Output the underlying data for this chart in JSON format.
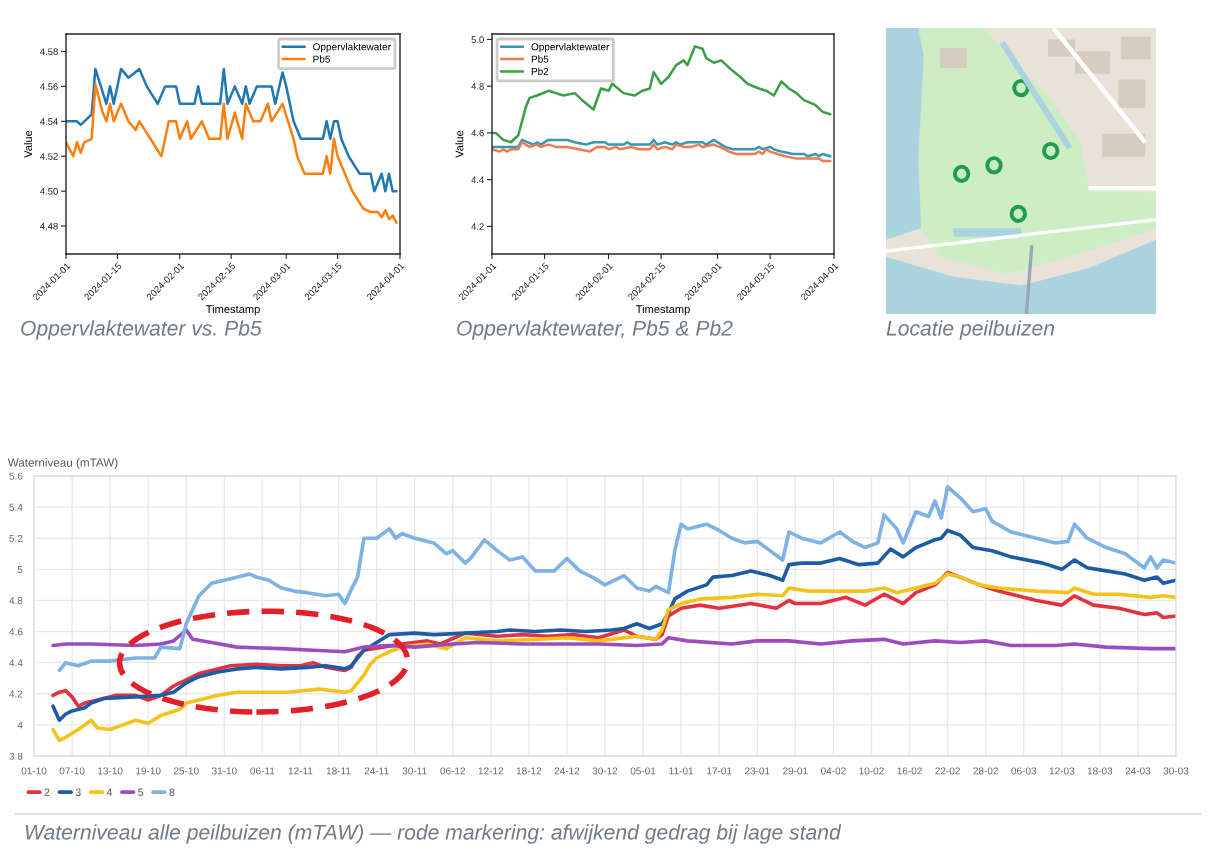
{
  "chart_data": [
    {
      "type": "line",
      "title": "Oppervlaktewater vs. Pb5",
      "xlabel": "Timestamp",
      "ylabel": "Value",
      "legend": "top right",
      "xlim": [
        "2024-01-01",
        "2024-04-01"
      ],
      "xticks": [
        "2024-01-01",
        "2024-01-15",
        "2024-02-01",
        "2024-02-15",
        "2024-03-01",
        "2024-03-15",
        "2024-04-01"
      ],
      "ylim": [
        4.464,
        4.59
      ],
      "yticks": [
        4.48,
        {
          "value": 4.5,
          "label": "4.50"
        },
        4.52,
        4.54,
        4.56,
        4.58
      ],
      "series": [
        {
          "name": "Oppervlaktewater",
          "color": "#1f77b4",
          "x": [
            "2024-01-01",
            "2024-01-04",
            "2024-01-05",
            "2024-01-06",
            "2024-01-08",
            "2024-01-09",
            "2024-01-12",
            "2024-01-13",
            "2024-01-14",
            "2024-01-16",
            "2024-01-18",
            "2024-01-21",
            "2024-01-23",
            "2024-01-26",
            "2024-01-28",
            "2024-01-31",
            "2024-02-01",
            "2024-02-05",
            "2024-02-06",
            "2024-02-07",
            "2024-02-12",
            "2024-02-13",
            "2024-02-14",
            "2024-02-16",
            "2024-02-18",
            "2024-02-19",
            "2024-02-20",
            "2024-02-22",
            "2024-02-26",
            "2024-02-27",
            "2024-02-29",
            "2024-03-01",
            "2024-03-03",
            "2024-03-05",
            "2024-03-11",
            "2024-03-12",
            "2024-03-13",
            "2024-03-14",
            "2024-03-15",
            "2024-03-16",
            "2024-03-18",
            "2024-03-21",
            "2024-03-24",
            "2024-03-25",
            "2024-03-27",
            "2024-03-28",
            "2024-03-29",
            "2024-03-30",
            "2024-03-31"
          ],
          "values": [
            4.54,
            4.54,
            4.538,
            4.54,
            4.544,
            4.57,
            4.55,
            4.56,
            4.55,
            4.57,
            4.565,
            4.57,
            4.56,
            4.55,
            4.56,
            4.56,
            4.55,
            4.55,
            4.56,
            4.55,
            4.55,
            4.57,
            4.55,
            4.56,
            4.55,
            4.56,
            4.55,
            4.56,
            4.56,
            4.55,
            4.568,
            4.56,
            4.54,
            4.53,
            4.53,
            4.54,
            4.53,
            4.54,
            4.54,
            4.53,
            4.52,
            4.51,
            4.51,
            4.5,
            4.51,
            4.5,
            4.51,
            4.5,
            4.5
          ]
        },
        {
          "name": "Pb5",
          "color": "#ff7f0e",
          "x": [
            "2024-01-01",
            "2024-01-03",
            "2024-01-04",
            "2024-01-05",
            "2024-01-06",
            "2024-01-08",
            "2024-01-09",
            "2024-01-11",
            "2024-01-12",
            "2024-01-13",
            "2024-01-14",
            "2024-01-16",
            "2024-01-18",
            "2024-01-20",
            "2024-01-21",
            "2024-01-24",
            "2024-01-27",
            "2024-01-28",
            "2024-01-29",
            "2024-01-31",
            "2024-02-01",
            "2024-02-03",
            "2024-02-04",
            "2024-02-07",
            "2024-02-09",
            "2024-02-12",
            "2024-02-13",
            "2024-02-14",
            "2024-02-16",
            "2024-02-18",
            "2024-02-19",
            "2024-02-21",
            "2024-02-23",
            "2024-02-25",
            "2024-02-26",
            "2024-02-29",
            "2024-03-03",
            "2024-03-04",
            "2024-03-06",
            "2024-03-11",
            "2024-03-12",
            "2024-03-13",
            "2024-03-14",
            "2024-03-15",
            "2024-03-17",
            "2024-03-19",
            "2024-03-22",
            "2024-03-24",
            "2024-03-26",
            "2024-03-27",
            "2024-03-28",
            "2024-03-29",
            "2024-03-30",
            "2024-03-31"
          ],
          "values": [
            4.528,
            4.52,
            4.528,
            4.522,
            4.528,
            4.53,
            4.561,
            4.545,
            4.54,
            4.55,
            4.54,
            4.55,
            4.54,
            4.535,
            4.54,
            4.53,
            4.52,
            4.53,
            4.54,
            4.54,
            4.53,
            4.54,
            4.53,
            4.54,
            4.53,
            4.53,
            4.55,
            4.53,
            4.545,
            4.53,
            4.55,
            4.54,
            4.54,
            4.55,
            4.54,
            4.55,
            4.53,
            4.52,
            4.51,
            4.51,
            4.52,
            4.51,
            4.53,
            4.52,
            4.51,
            4.5,
            4.49,
            4.488,
            4.488,
            4.485,
            4.489,
            4.484,
            4.486,
            4.482
          ]
        }
      ]
    },
    {
      "type": "line",
      "title": "Oppervlaktewater, Pb5 & Pb2",
      "xlabel": "Timestamp",
      "ylabel": "Value",
      "legend": "top left",
      "xlim": [
        "2024-01-01",
        "2024-04-01"
      ],
      "xticks": [
        "2024-01-01",
        "2024-01-15",
        "2024-02-01",
        "2024-02-15",
        "2024-03-01",
        "2024-03-15",
        "2024-04-01"
      ],
      "ylim": [
        4.082,
        5.023
      ],
      "yticks": [
        4.2,
        4.4,
        4.6,
        4.8,
        {
          "value": 5,
          "label": "5.0"
        }
      ],
      "series": [
        {
          "name": "Oppervlaktewater",
          "color": "#3597b4",
          "x": [
            "2024-01-01",
            "2024-01-04",
            "2024-01-06",
            "2024-01-08",
            "2024-01-09",
            "2024-01-12",
            "2024-01-13",
            "2024-01-14",
            "2024-01-16",
            "2024-01-21",
            "2024-01-23",
            "2024-01-26",
            "2024-01-28",
            "2024-01-31",
            "2024-02-01",
            "2024-02-05",
            "2024-02-06",
            "2024-02-07",
            "2024-02-12",
            "2024-02-13",
            "2024-02-14",
            "2024-02-16",
            "2024-02-18",
            "2024-02-19",
            "2024-02-20",
            "2024-02-22",
            "2024-02-26",
            "2024-02-27",
            "2024-02-29",
            "2024-03-03",
            "2024-03-05",
            "2024-03-11",
            "2024-03-12",
            "2024-03-13",
            "2024-03-15",
            "2024-03-16",
            "2024-03-18",
            "2024-03-21",
            "2024-03-24",
            "2024-03-25",
            "2024-03-27",
            "2024-03-28",
            "2024-03-29",
            "2024-03-31"
          ],
          "values": [
            4.54,
            4.54,
            4.54,
            4.54,
            4.57,
            4.55,
            4.56,
            4.55,
            4.57,
            4.57,
            4.56,
            4.55,
            4.56,
            4.56,
            4.55,
            4.55,
            4.56,
            4.55,
            4.55,
            4.57,
            4.55,
            4.56,
            4.55,
            4.56,
            4.55,
            4.56,
            4.56,
            4.55,
            4.57,
            4.54,
            4.53,
            4.53,
            4.54,
            4.53,
            4.54,
            4.53,
            4.52,
            4.51,
            4.51,
            4.5,
            4.51,
            4.5,
            4.51,
            4.5
          ]
        },
        {
          "name": "Pb5",
          "color": "#f17a52",
          "x": [
            "2024-01-01",
            "2024-01-03",
            "2024-01-04",
            "2024-01-05",
            "2024-01-06",
            "2024-01-08",
            "2024-01-09",
            "2024-01-11",
            "2024-01-13",
            "2024-01-14",
            "2024-01-16",
            "2024-01-18",
            "2024-01-21",
            "2024-01-24",
            "2024-01-27",
            "2024-01-28",
            "2024-01-29",
            "2024-01-31",
            "2024-02-01",
            "2024-02-03",
            "2024-02-04",
            "2024-02-07",
            "2024-02-09",
            "2024-02-12",
            "2024-02-13",
            "2024-02-14",
            "2024-02-16",
            "2024-02-18",
            "2024-02-19",
            "2024-02-21",
            "2024-02-23",
            "2024-02-25",
            "2024-02-26",
            "2024-02-29",
            "2024-03-03",
            "2024-03-04",
            "2024-03-06",
            "2024-03-11",
            "2024-03-12",
            "2024-03-13",
            "2024-03-14",
            "2024-03-15",
            "2024-03-17",
            "2024-03-19",
            "2024-03-22",
            "2024-03-28",
            "2024-03-29",
            "2024-03-31"
          ],
          "values": [
            4.53,
            4.52,
            4.53,
            4.52,
            4.53,
            4.53,
            4.56,
            4.54,
            4.55,
            4.54,
            4.55,
            4.54,
            4.54,
            4.53,
            4.52,
            4.53,
            4.54,
            4.54,
            4.53,
            4.54,
            4.53,
            4.54,
            4.53,
            4.53,
            4.55,
            4.53,
            4.54,
            4.53,
            4.55,
            4.54,
            4.54,
            4.55,
            4.54,
            4.55,
            4.53,
            4.52,
            4.51,
            4.51,
            4.52,
            4.51,
            4.53,
            4.52,
            4.51,
            4.5,
            4.49,
            4.49,
            4.48,
            4.48
          ]
        },
        {
          "name": "Pb2",
          "color": "#3a9e45",
          "x": [
            "2024-01-01",
            "2024-01-02",
            "2024-01-04",
            "2024-01-06",
            "2024-01-08",
            "2024-01-10",
            "2024-01-11",
            "2024-01-13",
            "2024-01-16",
            "2024-01-18",
            "2024-01-20",
            "2024-01-23",
            "2024-01-25",
            "2024-01-28",
            "2024-01-30",
            "2024-02-01",
            "2024-02-02",
            "2024-02-05",
            "2024-02-08",
            "2024-02-10",
            "2024-02-12",
            "2024-02-13",
            "2024-02-15",
            "2024-02-17",
            "2024-02-19",
            "2024-02-21",
            "2024-02-22",
            "2024-02-24",
            "2024-02-26",
            "2024-02-27",
            "2024-02-29",
            "2024-03-02",
            "2024-03-04",
            "2024-03-07",
            "2024-03-09",
            "2024-03-12",
            "2024-03-14",
            "2024-03-16",
            "2024-03-18",
            "2024-03-20",
            "2024-03-22",
            "2024-03-24",
            "2024-03-27",
            "2024-03-29",
            "2024-03-31"
          ],
          "values": [
            4.6,
            4.6,
            4.57,
            4.56,
            4.59,
            4.71,
            4.75,
            4.76,
            4.78,
            4.77,
            4.76,
            4.77,
            4.74,
            4.7,
            4.79,
            4.78,
            4.81,
            4.77,
            4.76,
            4.78,
            4.79,
            4.86,
            4.81,
            4.84,
            4.89,
            4.91,
            4.89,
            4.97,
            4.96,
            4.92,
            4.9,
            4.91,
            4.88,
            4.84,
            4.81,
            4.79,
            4.78,
            4.76,
            4.82,
            4.79,
            4.77,
            4.74,
            4.72,
            4.69,
            4.68
          ]
        }
      ]
    },
    {
      "type": "other",
      "title": "Locatie peilbuizen"
    },
    {
      "type": "line",
      "title": "Waterniveau alle peilbuizen (mTAW) — rode markering: afwijkend gedrag bij lage stand",
      "ylabel": "Waterniveau (mTAW)",
      "legend": "bottom left",
      "grid": true,
      "xlim": [
        "2024-10-01",
        "2025-03-30"
      ],
      "xticks": [
        {
          "value": "2024-10-01",
          "label": "01-10"
        },
        {
          "value": "2024-10-07",
          "label": "07-10"
        },
        {
          "value": "2024-10-13",
          "label": "13-10"
        },
        {
          "value": "2024-10-19",
          "label": "19-10"
        },
        {
          "value": "2024-10-25",
          "label": "25-10"
        },
        {
          "value": "2024-10-31",
          "label": "31-10"
        },
        {
          "value": "2024-11-06",
          "label": "06-11"
        },
        {
          "value": "2024-11-12",
          "label": "12-11"
        },
        {
          "value": "2024-11-18",
          "label": "18-11"
        },
        {
          "value": "2024-11-24",
          "label": "24-11"
        },
        {
          "value": "2024-11-30",
          "label": "30-11"
        },
        {
          "value": "2024-12-06",
          "label": "06-12"
        },
        {
          "value": "2024-12-12",
          "label": "12-12"
        },
        {
          "value": "2024-12-18",
          "label": "18-12"
        },
        {
          "value": "2024-12-24",
          "label": "24-12"
        },
        {
          "value": "2024-12-30",
          "label": "30-12"
        },
        {
          "value": "2025-01-05",
          "label": "05-01"
        },
        {
          "value": "2025-01-11",
          "label": "11-01"
        },
        {
          "value": "2025-01-17",
          "label": "17-01"
        },
        {
          "value": "2025-01-23",
          "label": "23-01"
        },
        {
          "value": "2025-01-29",
          "label": "29-01"
        },
        {
          "value": "2025-02-04",
          "label": "04-02"
        },
        {
          "value": "2025-02-10",
          "label": "10-02"
        },
        {
          "value": "2025-02-16",
          "label": "16-02"
        },
        {
          "value": "2025-02-22",
          "label": "22-02"
        },
        {
          "value": "2025-02-28",
          "label": "28-02"
        },
        {
          "value": "2025-03-06",
          "label": "06-03"
        },
        {
          "value": "2025-03-12",
          "label": "12-03"
        },
        {
          "value": "2025-03-18",
          "label": "18-03"
        },
        {
          "value": "2025-03-24",
          "label": "24-03"
        },
        {
          "value": "2025-03-30",
          "label": "30-03"
        }
      ],
      "ylim": [
        3.8,
        5.6
      ],
      "yticks": [
        3.8,
        4,
        4.2,
        4.4,
        4.6,
        4.8,
        5,
        5.2,
        5.4,
        5.6
      ],
      "series": [
        {
          "name": "2",
          "color": "#e3323f",
          "x": [
            "2024-10-04",
            "2024-10-05",
            "2024-10-06",
            "2024-10-07",
            "2024-10-08",
            "2024-10-09",
            "2024-10-11",
            "2024-10-14",
            "2024-10-17",
            "2024-10-19",
            "2024-10-21",
            "2024-10-23",
            "2024-10-25",
            "2024-10-27",
            "2024-10-29",
            "2024-11-01",
            "2024-11-05",
            "2024-11-09",
            "2024-11-12",
            "2024-11-14",
            "2024-11-16",
            "2024-11-19",
            "2024-11-20",
            "2024-11-21",
            "2024-11-22",
            "2024-11-25",
            "2024-11-28",
            "2024-12-02",
            "2024-12-04",
            "2024-12-08",
            "2024-12-13",
            "2024-12-17",
            "2024-12-21",
            "2024-12-25",
            "2024-12-29",
            "2025-01-02",
            "2025-01-04",
            "2025-01-07",
            "2025-01-08",
            "2025-01-09",
            "2025-01-11",
            "2025-01-14",
            "2025-01-17",
            "2025-01-22",
            "2025-01-26",
            "2025-01-28",
            "2025-01-29",
            "2025-02-02",
            "2025-02-06",
            "2025-02-09",
            "2025-02-12",
            "2025-02-15",
            "2025-02-17",
            "2025-02-20",
            "2025-02-22",
            "2025-02-24",
            "2025-02-27",
            "2025-03-02",
            "2025-03-08",
            "2025-03-12",
            "2025-03-14",
            "2025-03-17",
            "2025-03-21",
            "2025-03-25",
            "2025-03-27",
            "2025-03-28",
            "2025-03-30"
          ],
          "values": [
            4.19,
            4.21,
            4.22,
            4.18,
            4.12,
            4.14,
            4.16,
            4.19,
            4.19,
            4.16,
            4.19,
            4.25,
            4.29,
            4.33,
            4.35,
            4.38,
            4.39,
            4.38,
            4.38,
            4.4,
            4.37,
            4.35,
            4.37,
            4.44,
            4.48,
            4.5,
            4.52,
            4.54,
            4.52,
            4.59,
            4.57,
            4.58,
            4.57,
            4.58,
            4.56,
            4.61,
            4.57,
            4.55,
            4.58,
            4.7,
            4.75,
            4.77,
            4.75,
            4.78,
            4.75,
            4.8,
            4.78,
            4.78,
            4.82,
            4.77,
            4.84,
            4.78,
            4.85,
            4.9,
            4.98,
            4.95,
            4.9,
            4.86,
            4.8,
            4.77,
            4.83,
            4.77,
            4.75,
            4.71,
            4.72,
            4.69,
            4.7
          ]
        },
        {
          "name": "3",
          "color": "#1d5ba6",
          "x": [
            "2024-10-04",
            "2024-10-05",
            "2024-10-06",
            "2024-10-07",
            "2024-10-09",
            "2024-10-10",
            "2024-10-12",
            "2024-10-17",
            "2024-10-21",
            "2024-10-23",
            "2024-10-25",
            "2024-10-27",
            "2024-10-30",
            "2024-11-02",
            "2024-11-05",
            "2024-11-09",
            "2024-11-13",
            "2024-11-16",
            "2024-11-19",
            "2024-11-20",
            "2024-11-21",
            "2024-11-22",
            "2024-11-24",
            "2024-11-26",
            "2024-11-30",
            "2024-12-03",
            "2024-12-08",
            "2024-12-13",
            "2024-12-15",
            "2024-12-19",
            "2024-12-23",
            "2024-12-27",
            "2024-12-31",
            "2025-01-02",
            "2025-01-04",
            "2025-01-06",
            "2025-01-08",
            "2025-01-09",
            "2025-01-10",
            "2025-01-12",
            "2025-01-15",
            "2025-01-16",
            "2025-01-19",
            "2025-01-22",
            "2025-01-25",
            "2025-01-27",
            "2025-01-28",
            "2025-01-30",
            "2025-02-02",
            "2025-02-05",
            "2025-02-08",
            "2025-02-11",
            "2025-02-13",
            "2025-02-15",
            "2025-02-17",
            "2025-02-20",
            "2025-02-21",
            "2025-02-22",
            "2025-02-24",
            "2025-02-26",
            "2025-03-01",
            "2025-03-04",
            "2025-03-09",
            "2025-03-12",
            "2025-03-14",
            "2025-03-16",
            "2025-03-19",
            "2025-03-22",
            "2025-03-25",
            "2025-03-27",
            "2025-03-28",
            "2025-03-30"
          ],
          "values": [
            4.12,
            4.03,
            4.07,
            4.09,
            4.11,
            4.14,
            4.17,
            4.18,
            4.19,
            4.21,
            4.27,
            4.31,
            4.34,
            4.36,
            4.37,
            4.36,
            4.37,
            4.38,
            4.36,
            4.38,
            4.43,
            4.48,
            4.53,
            4.58,
            4.59,
            4.58,
            4.59,
            4.6,
            4.61,
            4.6,
            4.61,
            4.6,
            4.61,
            4.62,
            4.65,
            4.62,
            4.65,
            4.72,
            4.81,
            4.86,
            4.9,
            4.95,
            4.96,
            4.99,
            4.96,
            4.93,
            5.03,
            5.04,
            5.04,
            5.07,
            5.03,
            5.04,
            5.13,
            5.08,
            5.14,
            5.19,
            5.2,
            5.25,
            5.22,
            5.14,
            5.12,
            5.08,
            5.04,
            5.0,
            5.06,
            5.01,
            4.99,
            4.97,
            4.93,
            4.95,
            4.91,
            4.93
          ]
        },
        {
          "name": "4",
          "color": "#f3c31c",
          "x": [
            "2024-10-04",
            "2024-10-05",
            "2024-10-06",
            "2024-10-08",
            "2024-10-10",
            "2024-10-11",
            "2024-10-13",
            "2024-10-15",
            "2024-10-17",
            "2024-10-19",
            "2024-10-21",
            "2024-10-24",
            "2024-10-25",
            "2024-10-27",
            "2024-10-30",
            "2024-11-02",
            "2024-11-06",
            "2024-11-10",
            "2024-11-15",
            "2024-11-19",
            "2024-11-20",
            "2024-11-22",
            "2024-11-23",
            "2024-11-24",
            "2024-11-26",
            "2024-11-28",
            "2024-12-02",
            "2024-12-05",
            "2024-12-08",
            "2024-12-13",
            "2024-12-19",
            "2024-12-24",
            "2024-12-29",
            "2025-01-04",
            "2025-01-07",
            "2025-01-08",
            "2025-01-09",
            "2025-01-11",
            "2025-01-14",
            "2025-01-19",
            "2025-01-23",
            "2025-01-27",
            "2025-01-28",
            "2025-01-31",
            "2025-02-05",
            "2025-02-09",
            "2025-02-12",
            "2025-02-14",
            "2025-02-17",
            "2025-02-20",
            "2025-02-22",
            "2025-02-24",
            "2025-02-27",
            "2025-03-02",
            "2025-03-08",
            "2025-03-13",
            "2025-03-14",
            "2025-03-17",
            "2025-03-21",
            "2025-03-26",
            "2025-03-28",
            "2025-03-30"
          ],
          "values": [
            3.97,
            3.9,
            3.92,
            3.97,
            4.03,
            3.98,
            3.97,
            4.0,
            4.03,
            4.01,
            4.06,
            4.1,
            4.14,
            4.16,
            4.19,
            4.21,
            4.21,
            4.21,
            4.23,
            4.21,
            4.22,
            4.32,
            4.39,
            4.43,
            4.47,
            4.5,
            4.52,
            4.49,
            4.56,
            4.54,
            4.55,
            4.56,
            4.54,
            4.57,
            4.55,
            4.61,
            4.74,
            4.78,
            4.81,
            4.82,
            4.84,
            4.83,
            4.88,
            4.86,
            4.86,
            4.86,
            4.88,
            4.85,
            4.88,
            4.91,
            4.97,
            4.95,
            4.9,
            4.88,
            4.86,
            4.85,
            4.88,
            4.84,
            4.84,
            4.82,
            4.83,
            4.82
          ]
        },
        {
          "name": "5",
          "color": "#9b4dbf",
          "x": [
            "2024-10-04",
            "2024-10-06",
            "2024-10-10",
            "2024-10-17",
            "2024-10-21",
            "2024-10-23",
            "2024-10-25",
            "2024-10-26",
            "2024-10-29",
            "2024-11-02",
            "2024-11-09",
            "2024-11-14",
            "2024-11-19",
            "2024-11-22",
            "2024-11-26",
            "2024-11-30",
            "2024-12-06",
            "2024-12-10",
            "2024-12-17",
            "2024-12-24",
            "2024-12-29",
            "2025-01-04",
            "2025-01-08",
            "2025-01-09",
            "2025-01-12",
            "2025-01-19",
            "2025-01-23",
            "2025-01-28",
            "2025-02-02",
            "2025-02-07",
            "2025-02-12",
            "2025-02-15",
            "2025-02-20",
            "2025-02-24",
            "2025-02-28",
            "2025-03-04",
            "2025-03-11",
            "2025-03-14",
            "2025-03-19",
            "2025-03-26",
            "2025-03-30"
          ],
          "values": [
            4.51,
            4.52,
            4.52,
            4.51,
            4.52,
            4.54,
            4.61,
            4.55,
            4.53,
            4.5,
            4.49,
            4.48,
            4.47,
            4.5,
            4.51,
            4.5,
            4.52,
            4.53,
            4.52,
            4.52,
            4.52,
            4.51,
            4.52,
            4.56,
            4.54,
            4.52,
            4.54,
            4.54,
            4.52,
            4.54,
            4.55,
            4.52,
            4.54,
            4.53,
            4.54,
            4.51,
            4.51,
            4.52,
            4.5,
            4.49,
            4.49
          ]
        },
        {
          "name": "8",
          "color": "#7eb1e4",
          "x": [
            "2024-10-05",
            "2024-10-06",
            "2024-10-08",
            "2024-10-10",
            "2024-10-13",
            "2024-10-15",
            "2024-10-17",
            "2024-10-20",
            "2024-10-21",
            "2024-10-24",
            "2024-10-25",
            "2024-10-26",
            "2024-10-27",
            "2024-10-29",
            "2024-11-01",
            "2024-11-04",
            "2024-11-05",
            "2024-11-07",
            "2024-11-09",
            "2024-11-11",
            "2024-11-13",
            "2024-11-16",
            "2024-11-18",
            "2024-11-19",
            "2024-11-20",
            "2024-11-21",
            "2024-11-22",
            "2024-11-24",
            "2024-11-26",
            "2024-11-27",
            "2024-11-28",
            "2024-11-30",
            "2024-12-03",
            "2024-12-05",
            "2024-12-06",
            "2024-12-08",
            "2024-12-09",
            "2024-12-11",
            "2024-12-13",
            "2024-12-15",
            "2024-12-17",
            "2024-12-19",
            "2024-12-22",
            "2024-12-24",
            "2024-12-26",
            "2024-12-28",
            "2024-12-30",
            "2025-01-02",
            "2025-01-04",
            "2025-01-06",
            "2025-01-07",
            "2025-01-09",
            "2025-01-10",
            "2025-01-11",
            "2025-01-12",
            "2025-01-15",
            "2025-01-17",
            "2025-01-19",
            "2025-01-21",
            "2025-01-23",
            "2025-01-25",
            "2025-01-27",
            "2025-01-28",
            "2025-01-30",
            "2025-02-02",
            "2025-02-05",
            "2025-02-07",
            "2025-02-09",
            "2025-02-11",
            "2025-02-12",
            "2025-02-14",
            "2025-02-15",
            "2025-02-17",
            "2025-02-19",
            "2025-02-20",
            "2025-02-21",
            "2025-02-22",
            "2025-02-24",
            "2025-02-26",
            "2025-02-28",
            "2025-03-01",
            "2025-03-04",
            "2025-03-08",
            "2025-03-11",
            "2025-03-13",
            "2025-03-14",
            "2025-03-16",
            "2025-03-19",
            "2025-03-22",
            "2025-03-25",
            "2025-03-26",
            "2025-03-27",
            "2025-03-28",
            "2025-03-30"
          ],
          "values": [
            4.35,
            4.4,
            4.38,
            4.41,
            4.41,
            4.42,
            4.43,
            4.43,
            4.5,
            4.49,
            4.65,
            4.74,
            4.83,
            4.91,
            4.94,
            4.97,
            4.95,
            4.93,
            4.88,
            4.86,
            4.85,
            4.83,
            4.84,
            4.78,
            4.87,
            4.95,
            5.2,
            5.2,
            5.26,
            5.2,
            5.23,
            5.2,
            5.17,
            5.1,
            5.12,
            5.04,
            5.08,
            5.19,
            5.12,
            5.06,
            5.08,
            4.99,
            4.99,
            5.07,
            4.99,
            4.95,
            4.9,
            4.96,
            4.88,
            4.86,
            4.89,
            4.85,
            5.12,
            5.29,
            5.26,
            5.29,
            5.25,
            5.2,
            5.17,
            5.18,
            5.12,
            5.06,
            5.24,
            5.2,
            5.17,
            5.24,
            5.18,
            5.14,
            5.17,
            5.35,
            5.26,
            5.17,
            5.37,
            5.34,
            5.44,
            5.33,
            5.53,
            5.46,
            5.37,
            5.39,
            5.31,
            5.24,
            5.2,
            5.17,
            5.18,
            5.29,
            5.2,
            5.14,
            5.1,
            5.01,
            5.08,
            5.01,
            5.06,
            5.04
          ]
        }
      ]
    }
  ]
}
